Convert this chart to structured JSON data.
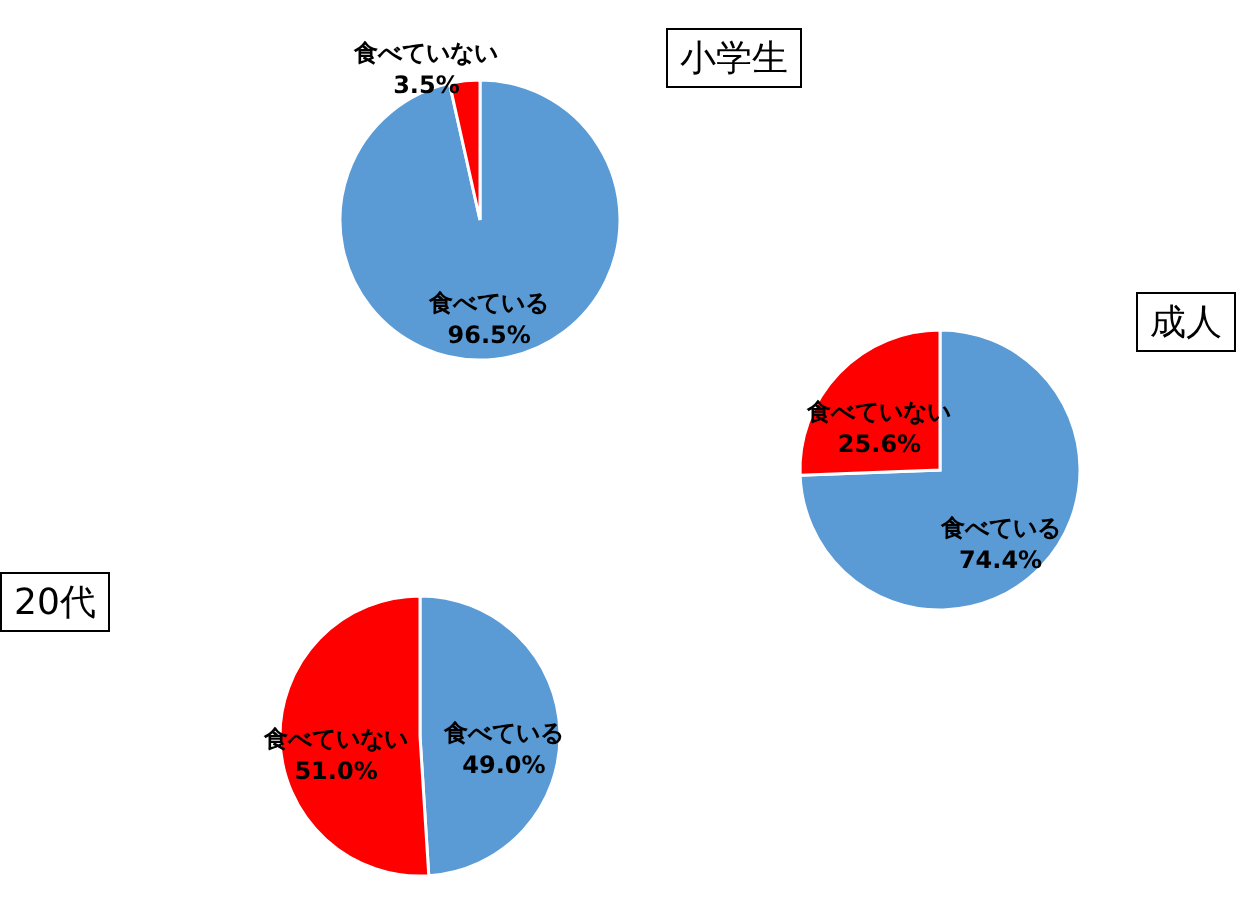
{
  "chart_data": [
    {
      "type": "pie",
      "title": "小学生",
      "categories": [
        "食べている",
        "食べていない"
      ],
      "values": [
        96.5,
        3.5
      ],
      "colors": [
        "#5b9bd5",
        "#ff0000"
      ],
      "value_labels": [
        "96.5%",
        "3.5%"
      ]
    },
    {
      "type": "pie",
      "title": "成人",
      "categories": [
        "食べている",
        "食べていない"
      ],
      "values": [
        74.4,
        25.6
      ],
      "colors": [
        "#5b9bd5",
        "#ff0000"
      ],
      "value_labels": [
        "74.4%",
        "25.6%"
      ]
    },
    {
      "type": "pie",
      "title": "20代",
      "categories": [
        "食べている",
        "食べていない"
      ],
      "values": [
        49.0,
        51.0
      ],
      "colors": [
        "#5b9bd5",
        "#ff0000"
      ],
      "value_labels": [
        "49.0%",
        "51.0%"
      ]
    }
  ]
}
